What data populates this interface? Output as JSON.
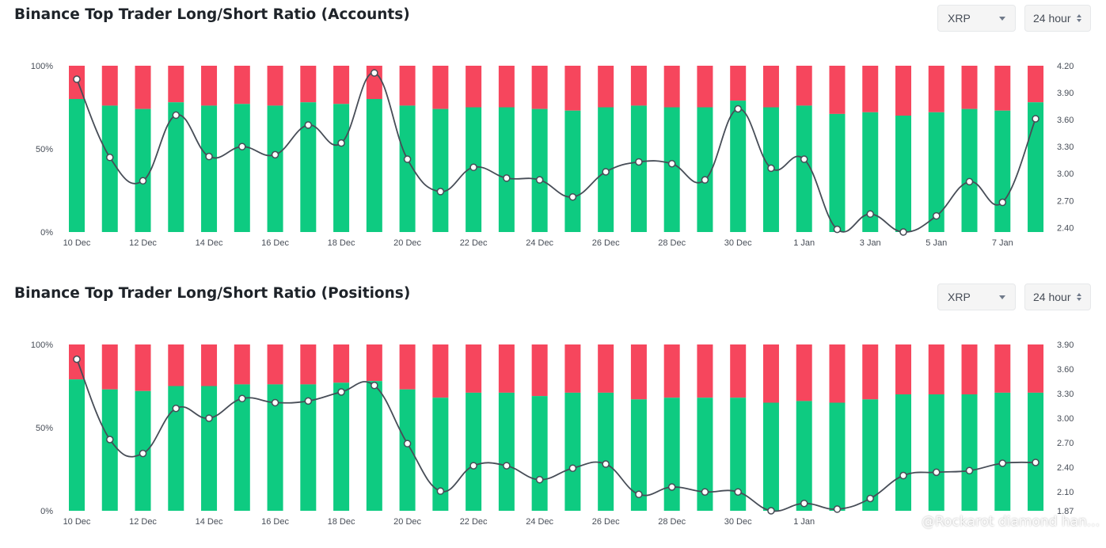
{
  "colors": {
    "long": "#0ecb81",
    "short": "#f6465d",
    "line": "#474d57",
    "axis_text": "#474d57"
  },
  "icons": {
    "select_caret": "chevron-down-icon",
    "period_caret": "up-down-chevron-icon"
  },
  "panels": [
    {
      "title": "Binance Top Trader Long/Short Ratio (Accounts)",
      "symbol": "XRP",
      "period": "24 hour"
    },
    {
      "title": "Binance Top Trader Long/Short Ratio (Positions)",
      "symbol": "XRP",
      "period": "24 hour"
    }
  ],
  "watermark": "@Rockarot diamond han...",
  "chart_data": [
    {
      "type": "bar",
      "stacked": true,
      "categories": [
        "10 Dec",
        "11 Dec",
        "12 Dec",
        "13 Dec",
        "14 Dec",
        "15 Dec",
        "16 Dec",
        "17 Dec",
        "18 Dec",
        "19 Dec",
        "20 Dec",
        "21 Dec",
        "22 Dec",
        "23 Dec",
        "24 Dec",
        "25 Dec",
        "26 Dec",
        "27 Dec",
        "28 Dec",
        "29 Dec",
        "30 Dec",
        "31 Dec",
        "1 Jan",
        "2 Jan",
        "3 Jan",
        "4 Jan",
        "5 Jan",
        "6 Jan",
        "7 Jan",
        "8 Jan"
      ],
      "x_tick_labels": [
        "10 Dec",
        "12 Dec",
        "14 Dec",
        "16 Dec",
        "18 Dec",
        "20 Dec",
        "22 Dec",
        "24 Dec",
        "26 Dec",
        "28 Dec",
        "30 Dec",
        "1 Jan",
        "3 Jan",
        "5 Jan",
        "7 Jan"
      ],
      "series": [
        {
          "values": [
            80,
            76,
            74,
            78,
            76,
            77,
            76,
            78,
            77,
            80,
            76,
            74,
            75,
            75,
            74,
            73,
            75,
            76,
            75,
            75,
            79,
            75,
            76,
            71,
            72,
            70,
            72,
            74,
            73,
            78
          ]
        },
        {
          "values": [
            20,
            24,
            26,
            22,
            24,
            23,
            24,
            22,
            23,
            20,
            24,
            26,
            25,
            25,
            26,
            27,
            25,
            24,
            25,
            25,
            21,
            25,
            24,
            29,
            28,
            30,
            28,
            26,
            27,
            22
          ]
        }
      ],
      "ratio_line": [
        4.05,
        3.18,
        2.92,
        3.65,
        3.19,
        3.3,
        3.21,
        3.54,
        3.34,
        4.12,
        3.16,
        2.8,
        3.07,
        2.95,
        2.93,
        2.74,
        3.02,
        3.13,
        3.11,
        2.93,
        3.72,
        3.06,
        3.16,
        2.38,
        2.55,
        2.35,
        2.53,
        2.91,
        2.68,
        3.61
      ],
      "y_left_ticks": [
        "0%",
        "50%",
        "100%"
      ],
      "y_left_range": [
        0,
        100
      ],
      "y_right_ticks": [
        "2.40",
        "2.70",
        "3.00",
        "3.30",
        "3.60",
        "3.90",
        "4.20"
      ],
      "y_right_range": [
        2.35,
        4.2
      ]
    },
    {
      "type": "bar",
      "stacked": true,
      "categories": [
        "10 Dec",
        "11 Dec",
        "12 Dec",
        "13 Dec",
        "14 Dec",
        "15 Dec",
        "16 Dec",
        "17 Dec",
        "18 Dec",
        "19 Dec",
        "20 Dec",
        "21 Dec",
        "22 Dec",
        "23 Dec",
        "24 Dec",
        "25 Dec",
        "26 Dec",
        "27 Dec",
        "28 Dec",
        "29 Dec",
        "30 Dec",
        "31 Dec",
        "1 Jan",
        "2 Jan",
        "3 Jan",
        "4 Jan",
        "5 Jan",
        "6 Jan",
        "7 Jan",
        "8 Jan"
      ],
      "x_tick_labels": [
        "10 Dec",
        "12 Dec",
        "14 Dec",
        "16 Dec",
        "18 Dec",
        "20 Dec",
        "22 Dec",
        "24 Dec",
        "26 Dec",
        "28 Dec",
        "30 Dec",
        "1 Jan"
      ],
      "series": [
        {
          "values": [
            79,
            73,
            72,
            75,
            75,
            76,
            76,
            76,
            77,
            78,
            73,
            68,
            71,
            71,
            69,
            71,
            71,
            67,
            68,
            68,
            68,
            65,
            66,
            65,
            67,
            70,
            70,
            70,
            71,
            71
          ]
        },
        {
          "values": [
            21,
            27,
            28,
            25,
            25,
            24,
            24,
            24,
            23,
            22,
            27,
            32,
            29,
            29,
            31,
            29,
            29,
            33,
            32,
            32,
            32,
            35,
            34,
            35,
            33,
            30,
            30,
            30,
            29,
            29
          ]
        }
      ],
      "ratio_line": [
        3.72,
        2.74,
        2.57,
        3.12,
        3.0,
        3.24,
        3.19,
        3.21,
        3.32,
        3.4,
        2.69,
        2.11,
        2.42,
        2.42,
        2.25,
        2.39,
        2.44,
        2.07,
        2.16,
        2.1,
        2.1,
        1.87,
        1.96,
        1.89,
        2.02,
        2.3,
        2.34,
        2.36,
        2.45,
        2.46
      ],
      "y_left_ticks": [
        "0%",
        "50%",
        "100%"
      ],
      "y_left_range": [
        0,
        100
      ],
      "y_right_ticks": [
        "1.87",
        "2.10",
        "2.40",
        "2.70",
        "3.00",
        "3.30",
        "3.60",
        "3.90"
      ],
      "y_right_range": [
        1.87,
        3.9
      ]
    }
  ]
}
